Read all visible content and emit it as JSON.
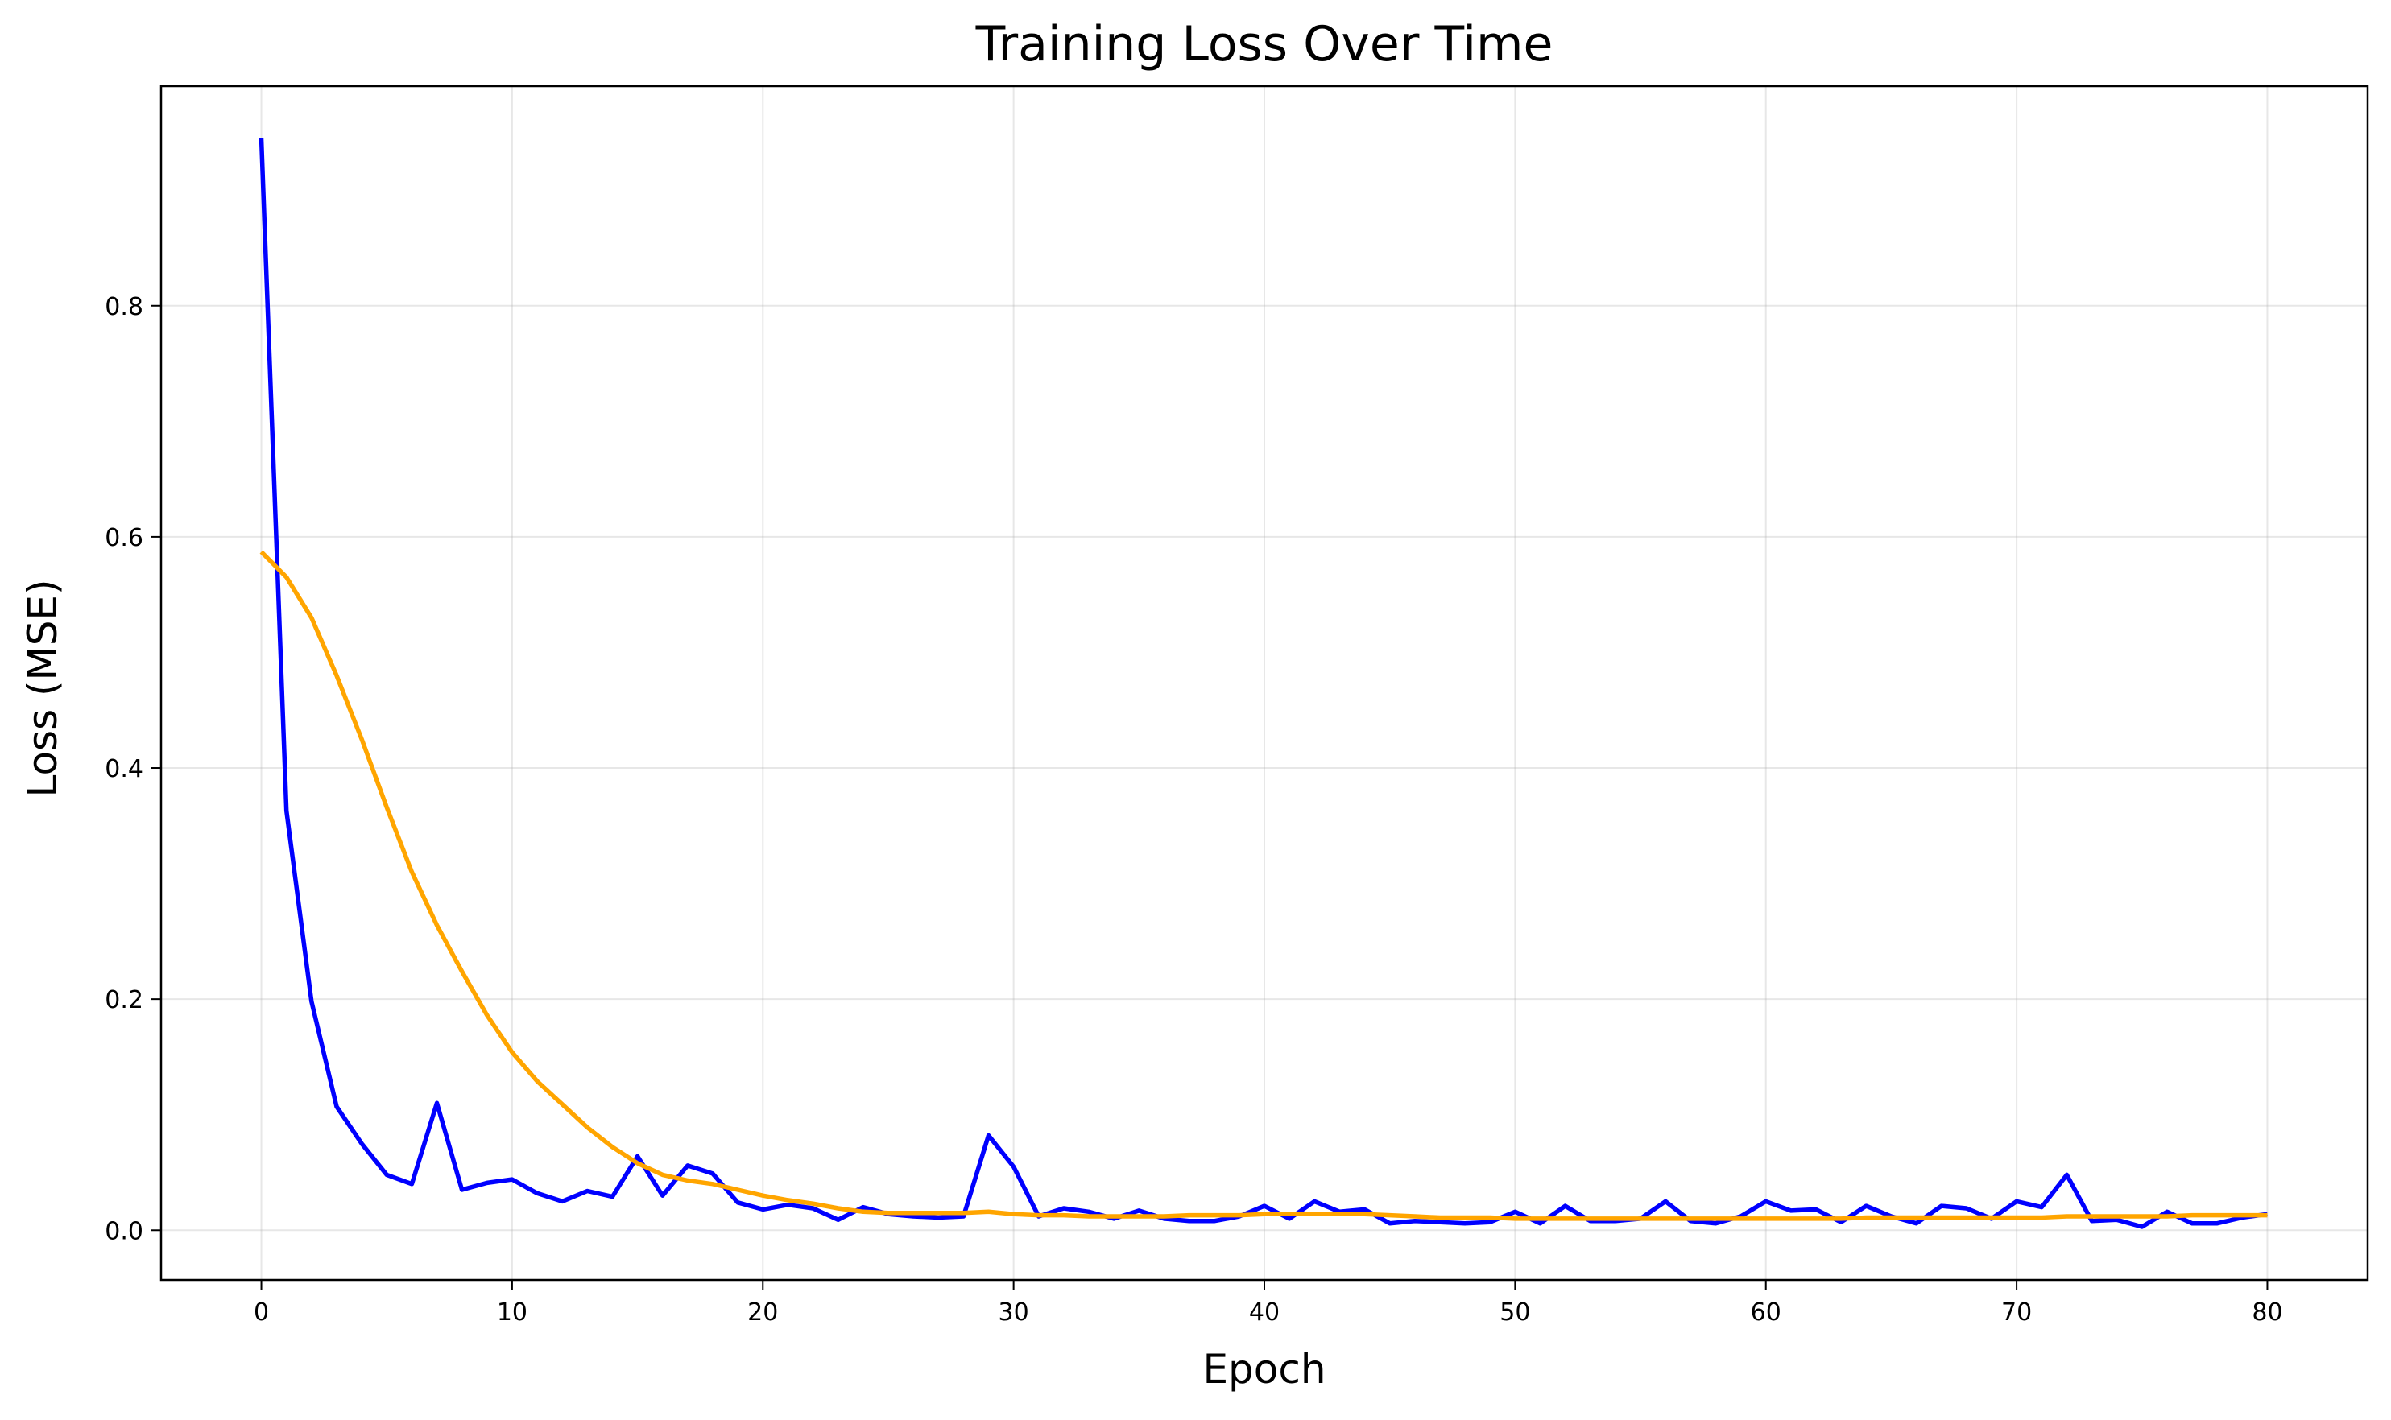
{
  "chart_data": {
    "type": "line",
    "title": "Training Loss Over Time",
    "xlabel": "Epoch",
    "ylabel": "Loss (MSE)",
    "xlim": [
      -4,
      84
    ],
    "ylim": [
      -0.043,
      0.99
    ],
    "xticks": [
      0,
      10,
      20,
      30,
      40,
      50,
      60,
      70,
      80
    ],
    "yticks": [
      0.0,
      0.2,
      0.4,
      0.6,
      0.8
    ],
    "ytick_labels": [
      "0.0",
      "0.2",
      "0.4",
      "0.6",
      "0.8"
    ],
    "grid": true,
    "legend": "none",
    "x": [
      0,
      1,
      2,
      3,
      4,
      5,
      6,
      7,
      8,
      9,
      10,
      11,
      12,
      13,
      14,
      15,
      16,
      17,
      18,
      19,
      20,
      21,
      22,
      23,
      24,
      25,
      26,
      27,
      28,
      29,
      30,
      31,
      32,
      33,
      34,
      35,
      36,
      37,
      38,
      39,
      40,
      41,
      42,
      43,
      44,
      45,
      46,
      47,
      48,
      49,
      50,
      51,
      52,
      53,
      54,
      55,
      56,
      57,
      58,
      59,
      60,
      61,
      62,
      63,
      64,
      65,
      66,
      67,
      68,
      69,
      70,
      71,
      72,
      73,
      74,
      75,
      76,
      77,
      78,
      79,
      80
    ],
    "series": [
      {
        "color": "#0000ff",
        "values": [
          0.945,
          0.363,
          0.198,
          0.107,
          0.075,
          0.048,
          0.04,
          0.11,
          0.035,
          0.041,
          0.044,
          0.032,
          0.025,
          0.034,
          0.029,
          0.064,
          0.03,
          0.056,
          0.049,
          0.024,
          0.018,
          0.022,
          0.019,
          0.009,
          0.02,
          0.014,
          0.012,
          0.011,
          0.012,
          0.082,
          0.055,
          0.012,
          0.019,
          0.016,
          0.01,
          0.017,
          0.01,
          0.008,
          0.008,
          0.012,
          0.021,
          0.01,
          0.025,
          0.016,
          0.018,
          0.006,
          0.008,
          0.007,
          0.006,
          0.007,
          0.016,
          0.006,
          0.021,
          0.008,
          0.008,
          0.01,
          0.025,
          0.008,
          0.006,
          0.012,
          0.025,
          0.017,
          0.018,
          0.007,
          0.021,
          0.012,
          0.006,
          0.021,
          0.019,
          0.01,
          0.025,
          0.02,
          0.048,
          0.008,
          0.009,
          0.003,
          0.016,
          0.006,
          0.006,
          0.011,
          0.014
        ]
      },
      {
        "color": "#ffa500",
        "values": [
          0.587,
          0.565,
          0.53,
          0.48,
          0.425,
          0.366,
          0.31,
          0.264,
          0.224,
          0.186,
          0.154,
          0.129,
          0.109,
          0.089,
          0.072,
          0.058,
          0.048,
          0.043,
          0.04,
          0.035,
          0.03,
          0.026,
          0.023,
          0.019,
          0.016,
          0.015,
          0.015,
          0.015,
          0.015,
          0.016,
          0.014,
          0.013,
          0.013,
          0.012,
          0.012,
          0.012,
          0.012,
          0.013,
          0.013,
          0.013,
          0.014,
          0.014,
          0.014,
          0.014,
          0.014,
          0.013,
          0.012,
          0.011,
          0.011,
          0.011,
          0.01,
          0.01,
          0.01,
          0.01,
          0.01,
          0.01,
          0.01,
          0.01,
          0.01,
          0.01,
          0.01,
          0.01,
          0.01,
          0.01,
          0.011,
          0.011,
          0.011,
          0.011,
          0.011,
          0.011,
          0.011,
          0.011,
          0.012,
          0.012,
          0.012,
          0.012,
          0.012,
          0.013,
          0.013,
          0.013,
          0.013
        ]
      }
    ]
  }
}
